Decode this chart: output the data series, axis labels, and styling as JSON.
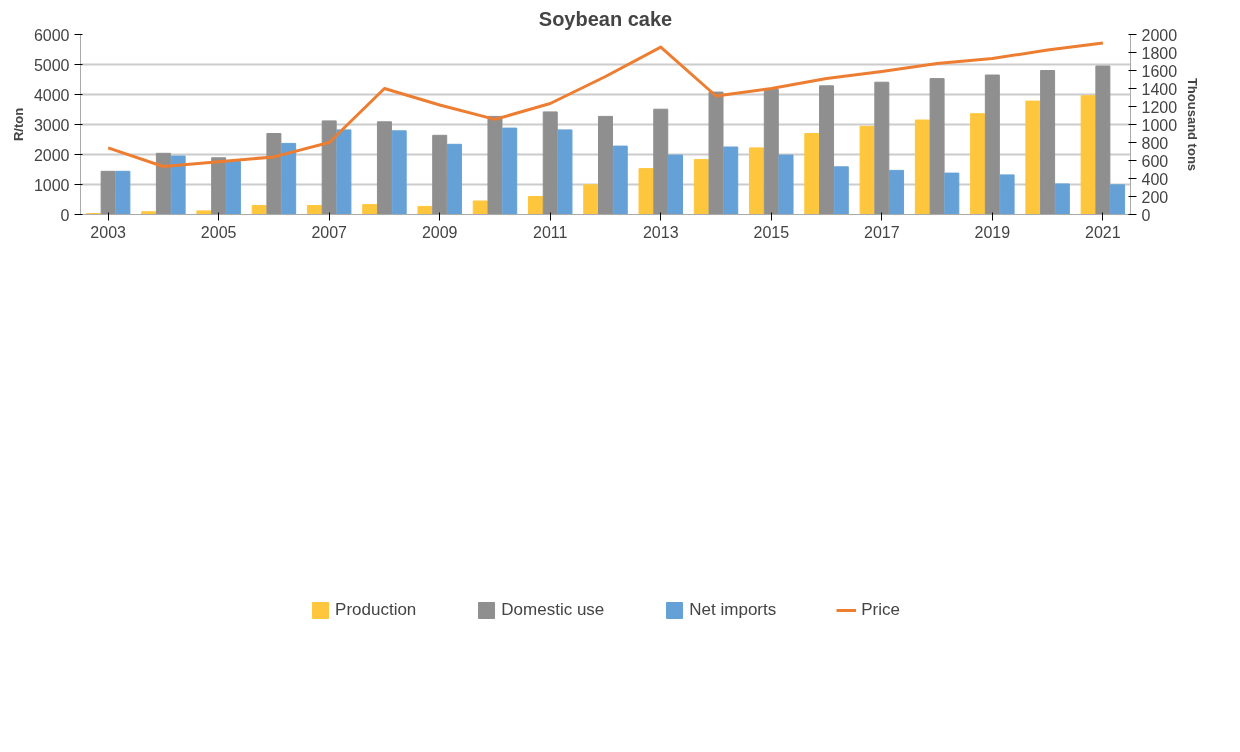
{
  "chart_data": {
    "type": "bar",
    "title": "Soybean cake",
    "ylabel": "R/ton",
    "y2label": "Thousand tons",
    "categories": [
      "2003",
      null,
      "2005",
      null,
      "2007",
      null,
      "2009",
      null,
      "2011",
      null,
      "2013",
      null,
      "2015",
      null,
      "2017",
      null,
      "2019",
      null,
      "2021"
    ],
    "series": [
      {
        "name": "Production",
        "color": "#fec63d",
        "axis": "y2",
        "values": [
          10,
          30,
          40,
          100,
          100,
          110,
          90,
          150,
          200,
          330,
          510,
          610,
          740,
          900,
          980,
          1050,
          1120,
          1260,
          1320
        ]
      },
      {
        "name": "Domestic use",
        "color": "#8f8f8f",
        "axis": "y2",
        "values": [
          480,
          680,
          630,
          900,
          1040,
          1030,
          880,
          1090,
          1140,
          1090,
          1170,
          1360,
          1390,
          1430,
          1470,
          1510,
          1550,
          1600,
          1650
        ]
      },
      {
        "name": "Net imports",
        "color": "#65a1d6",
        "axis": "y2",
        "values": [
          480,
          650,
          590,
          790,
          940,
          930,
          780,
          960,
          940,
          760,
          660,
          750,
          660,
          530,
          490,
          460,
          440,
          340,
          330
        ]
      },
      {
        "name": "Price",
        "color": "#ed7d31",
        "type": "line",
        "axis": "y",
        "values": [
          2220,
          1600,
          1760,
          1920,
          2400,
          4200,
          3650,
          3170,
          3700,
          4600,
          5580,
          3950,
          4200,
          4530,
          4770,
          5030,
          5200,
          5480,
          5720
        ]
      }
    ],
    "ylim": [
      0,
      6000
    ],
    "yticks": [
      0,
      1000,
      2000,
      3000,
      4000,
      5000,
      6000
    ],
    "y2lim": [
      0,
      2000
    ],
    "y2ticks": [
      0,
      200,
      400,
      600,
      800,
      1000,
      1200,
      1400,
      1600,
      1800,
      2000
    ],
    "grid": "y",
    "legend": "bottom",
    "marker": "none",
    "line_style": "solid"
  }
}
